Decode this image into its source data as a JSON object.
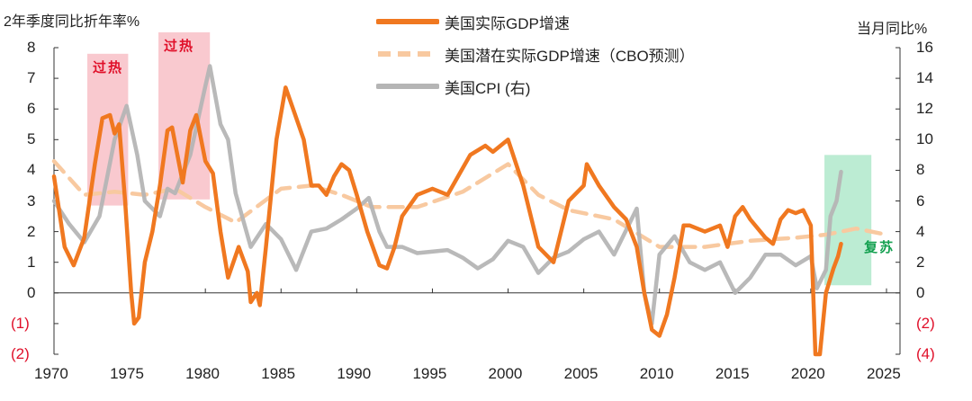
{
  "chart_data": {
    "type": "line",
    "left_axis_title": "2年季度同比折年率%",
    "right_axis_title": "当月同比%",
    "xlim": [
      1970,
      2025
    ],
    "x_ticks": [
      "1970",
      "1975",
      "1980",
      "1985",
      "1990",
      "1995",
      "2000",
      "2005",
      "2010",
      "2015",
      "2020",
      "2025"
    ],
    "ylim_left": [
      -2,
      8
    ],
    "left_ticks": [
      "8",
      "7",
      "6",
      "5",
      "4",
      "3",
      "2",
      "1",
      "0",
      "(1)",
      "(2)"
    ],
    "ylim_right": [
      -4,
      16
    ],
    "right_ticks": [
      "16",
      "14",
      "12",
      "10",
      "8",
      "6",
      "4",
      "2",
      "0",
      "(2)",
      "(4)"
    ],
    "colors": {
      "gdp": "#f07820",
      "potential": "#f8c9a0",
      "cpi": "#b5b5b5",
      "overheat": "#f7b7bf",
      "recovery": "#8fe0b5",
      "red_text": "#e0102a",
      "green_text": "#14a050"
    },
    "series": [
      {
        "name": "美国实际GDP增速",
        "axis": "left",
        "points": [
          [
            1970,
            3.8
          ],
          [
            1970.7,
            1.5
          ],
          [
            1971.3,
            0.9
          ],
          [
            1972,
            1.8
          ],
          [
            1972.7,
            4.2
          ],
          [
            1973.2,
            5.7
          ],
          [
            1973.7,
            5.8
          ],
          [
            1974,
            5.2
          ],
          [
            1974.3,
            5.5
          ],
          [
            1974.7,
            3
          ],
          [
            1975.1,
            0
          ],
          [
            1975.3,
            -1
          ],
          [
            1975.6,
            -0.8
          ],
          [
            1976,
            1
          ],
          [
            1976.5,
            2
          ],
          [
            1977,
            3.5
          ],
          [
            1977.5,
            5.3
          ],
          [
            1977.8,
            5.4
          ],
          [
            1978.5,
            3.6
          ],
          [
            1979,
            5.3
          ],
          [
            1979.4,
            5.8
          ],
          [
            1980,
            4.3
          ],
          [
            1980.5,
            3.9
          ],
          [
            1981,
            2
          ],
          [
            1981.5,
            0.5
          ],
          [
            1982.2,
            1.5
          ],
          [
            1982.8,
            0.7
          ],
          [
            1983,
            -0.3
          ],
          [
            1983.4,
            0
          ],
          [
            1983.6,
            -0.4
          ],
          [
            1984,
            1.5
          ],
          [
            1984.7,
            5
          ],
          [
            1985.3,
            6.7
          ],
          [
            1985.8,
            6
          ],
          [
            1986.5,
            5
          ],
          [
            1987,
            3.5
          ],
          [
            1987.5,
            3.5
          ],
          [
            1988,
            3.2
          ],
          [
            1988.5,
            3.8
          ],
          [
            1989,
            4.2
          ],
          [
            1989.5,
            4
          ],
          [
            1990,
            3.2
          ],
          [
            1990.7,
            2
          ],
          [
            1991.5,
            0.9
          ],
          [
            1992,
            0.8
          ],
          [
            1992.5,
            1.5
          ],
          [
            1993,
            2.5
          ],
          [
            1994,
            3.2
          ],
          [
            1995,
            3.4
          ],
          [
            1996,
            3.2
          ],
          [
            1997.5,
            4.5
          ],
          [
            1998.5,
            4.8
          ],
          [
            1999,
            4.6
          ],
          [
            2000,
            5
          ],
          [
            2001,
            3.5
          ],
          [
            2002,
            1.5
          ],
          [
            2003,
            1
          ],
          [
            2003.5,
            2
          ],
          [
            2004,
            3
          ],
          [
            2005,
            3.5
          ],
          [
            2005.2,
            4.2
          ],
          [
            2006,
            3.5
          ],
          [
            2007,
            2.8
          ],
          [
            2007.8,
            2.4
          ],
          [
            2008.5,
            1.5
          ],
          [
            2009,
            0
          ],
          [
            2009.5,
            -1.2
          ],
          [
            2010,
            -1.4
          ],
          [
            2010.5,
            -0.7
          ],
          [
            2011,
            0.5
          ],
          [
            2011.6,
            2.2
          ],
          [
            2012,
            2.2
          ],
          [
            2013,
            2
          ],
          [
            2014,
            2.2
          ],
          [
            2014.5,
            1.5
          ],
          [
            2015,
            2.5
          ],
          [
            2015.5,
            2.8
          ],
          [
            2016,
            2.4
          ],
          [
            2017,
            1.8
          ],
          [
            2017.5,
            1.6
          ],
          [
            2018,
            2.4
          ],
          [
            2018.5,
            2.7
          ],
          [
            2019,
            2.6
          ],
          [
            2019.5,
            2.7
          ],
          [
            2020,
            2.2
          ],
          [
            2020.3,
            -2
          ],
          [
            2020.6,
            -2
          ],
          [
            2021,
            0
          ],
          [
            2021.5,
            0.8
          ],
          [
            2021.8,
            1.2
          ],
          [
            2022,
            1.6
          ]
        ]
      },
      {
        "name": "美国潜在实际GDP增速（CBO预测）",
        "axis": "left",
        "points": [
          [
            1970,
            4.3
          ],
          [
            1972,
            3.2
          ],
          [
            1974,
            3.3
          ],
          [
            1976,
            3.2
          ],
          [
            1978,
            3.4
          ],
          [
            1980,
            2.8
          ],
          [
            1982,
            2.3
          ],
          [
            1985,
            3.4
          ],
          [
            1987,
            3.5
          ],
          [
            1989,
            3.2
          ],
          [
            1991,
            2.8
          ],
          [
            1994,
            2.8
          ],
          [
            1997,
            3.3
          ],
          [
            2000,
            4.2
          ],
          [
            2002,
            3.2
          ],
          [
            2004,
            2.7
          ],
          [
            2007,
            2.4
          ],
          [
            2010,
            1.5
          ],
          [
            2013,
            1.5
          ],
          [
            2016,
            1.7
          ],
          [
            2019,
            1.8
          ],
          [
            2021,
            1.9
          ],
          [
            2023,
            2.1
          ],
          [
            2025,
            1.9
          ]
        ]
      },
      {
        "name": "美国CPI (右)",
        "axis": "right",
        "points": [
          [
            1970,
            6
          ],
          [
            1971,
            4.5
          ],
          [
            1972,
            3.3
          ],
          [
            1973,
            5
          ],
          [
            1974,
            10
          ],
          [
            1974.8,
            12.2
          ],
          [
            1975.5,
            9
          ],
          [
            1976,
            6
          ],
          [
            1977,
            5
          ],
          [
            1977.5,
            6.8
          ],
          [
            1978,
            6.5
          ],
          [
            1979,
            9
          ],
          [
            1980,
            13.5
          ],
          [
            1980.3,
            14.8
          ],
          [
            1981,
            11
          ],
          [
            1981.5,
            10
          ],
          [
            1982,
            6.5
          ],
          [
            1983,
            3
          ],
          [
            1984,
            4.5
          ],
          [
            1985,
            3.5
          ],
          [
            1986,
            1.5
          ],
          [
            1987,
            4
          ],
          [
            1988,
            4.2
          ],
          [
            1989,
            4.8
          ],
          [
            1990,
            5.5
          ],
          [
            1990.8,
            6.2
          ],
          [
            1991.5,
            4
          ],
          [
            1992,
            3
          ],
          [
            1993,
            3
          ],
          [
            1994,
            2.6
          ],
          [
            1996,
            2.8
          ],
          [
            1997,
            2.3
          ],
          [
            1998,
            1.6
          ],
          [
            1999,
            2.2
          ],
          [
            2000,
            3.4
          ],
          [
            2001,
            3
          ],
          [
            2002,
            1.3
          ],
          [
            2003,
            2.3
          ],
          [
            2004,
            2.7
          ],
          [
            2005,
            3.5
          ],
          [
            2006,
            4
          ],
          [
            2007,
            2.5
          ],
          [
            2008,
            4.5
          ],
          [
            2008.5,
            5.5
          ],
          [
            2009,
            0
          ],
          [
            2009.5,
            -2
          ],
          [
            2010,
            2.5
          ],
          [
            2011,
            3.7
          ],
          [
            2012,
            2
          ],
          [
            2013,
            1.5
          ],
          [
            2014,
            2
          ],
          [
            2015,
            0
          ],
          [
            2016,
            1
          ],
          [
            2017,
            2.5
          ],
          [
            2018,
            2.5
          ],
          [
            2019,
            1.8
          ],
          [
            2020,
            2.4
          ],
          [
            2020.4,
            0.3
          ],
          [
            2021,
            1.5
          ],
          [
            2021.3,
            5
          ],
          [
            2021.7,
            6
          ],
          [
            2022,
            7.9
          ]
        ]
      }
    ],
    "annotations": [
      {
        "text": "过热",
        "x_range": [
          1972.2,
          1974.9
        ],
        "y_range_left": [
          2.85,
          7.8
        ],
        "kind": "overheat"
      },
      {
        "text": "过热",
        "x_range": [
          1976.9,
          1980.3
        ],
        "y_range_left": [
          3.05,
          8.5
        ],
        "kind": "overheat"
      },
      {
        "text": "复苏",
        "x_range": [
          2020.9,
          2024
        ],
        "y_range_right": [
          0.5,
          9
        ],
        "kind": "recovery"
      }
    ]
  }
}
